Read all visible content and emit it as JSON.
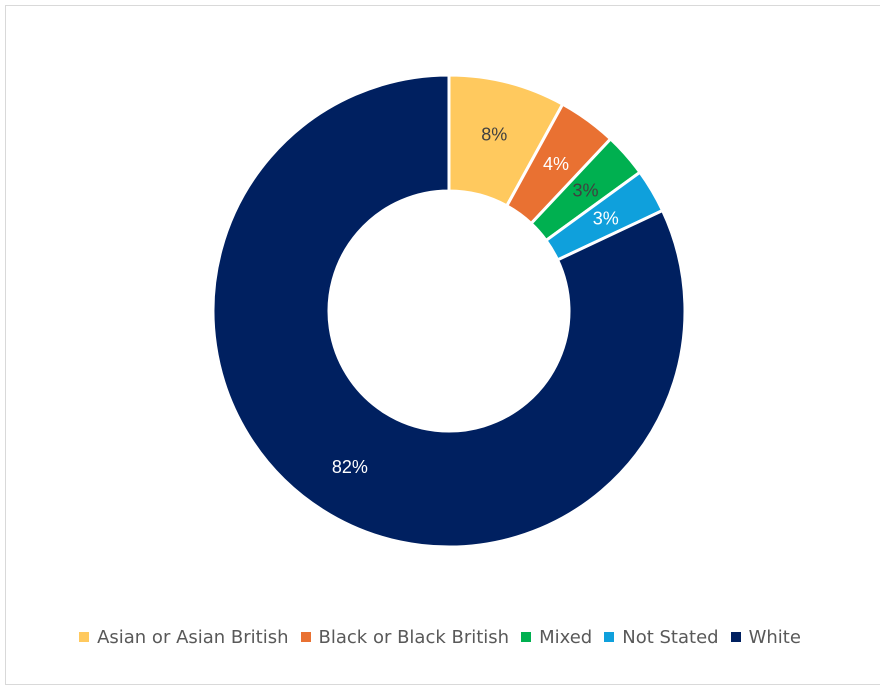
{
  "chart_data": {
    "type": "pie",
    "subtype": "donut",
    "title": "",
    "legend_position": "bottom",
    "slices": [
      {
        "name": "Asian or Asian British",
        "value": 8,
        "label": "8%",
        "color": "#FFC95E",
        "label_color": "#404040"
      },
      {
        "name": "Black or Black British",
        "value": 4,
        "label": "4%",
        "color": "#E97132",
        "label_color": "#FFFFFF"
      },
      {
        "name": "Mixed",
        "value": 3,
        "label": "3%",
        "color": "#00B050",
        "label_color": "#404040"
      },
      {
        "name": "Not Stated",
        "value": 3,
        "label": "3%",
        "color": "#0FA0DC",
        "label_color": "#FFFFFF"
      },
      {
        "name": "White",
        "value": 82,
        "label": "82%",
        "color": "#002060",
        "label_color": "#FFFFFF"
      }
    ]
  }
}
